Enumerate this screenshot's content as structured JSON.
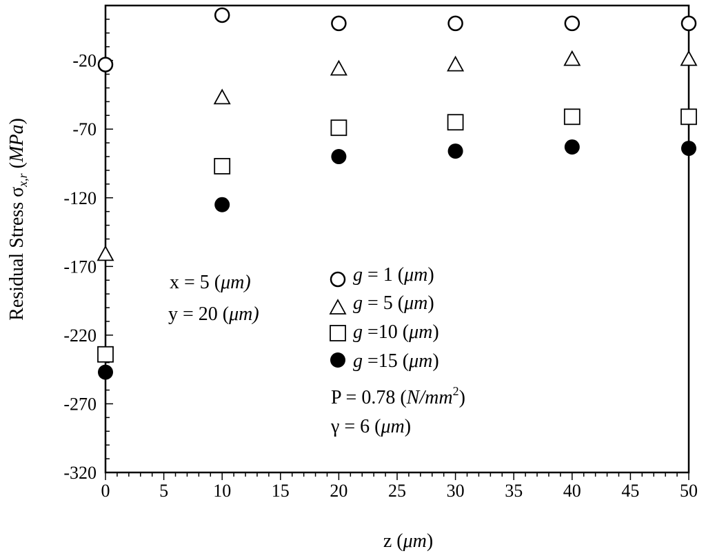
{
  "chart_data": {
    "type": "scatter",
    "title": "",
    "xlabel": {
      "prefix": "z (",
      "unit": "μm",
      "suffix": ")"
    },
    "ylabel": {
      "prefix": "Residual Stress σ",
      "sub": "x,r",
      "space": " (",
      "unit": "MPa",
      "suffix": ")"
    },
    "xlim": [
      0,
      50
    ],
    "ylim": [
      -320,
      20
    ],
    "x_ticks": [
      "0",
      "5",
      "10",
      "15",
      "20",
      "25",
      "30",
      "35",
      "40",
      "45",
      "50"
    ],
    "y_ticks": [
      "-20",
      "-70",
      "-120",
      "-170",
      "-220",
      "-270",
      "-320"
    ],
    "x_tick_values": [
      0,
      5,
      10,
      15,
      20,
      25,
      30,
      35,
      40,
      45,
      50
    ],
    "y_tick_values": [
      -20,
      -70,
      -120,
      -170,
      -220,
      -270,
      -320
    ],
    "grid": false,
    "legend_position": "center",
    "x": [
      0,
      10,
      20,
      30,
      40,
      50
    ],
    "series": [
      {
        "name": "g = 1 (μm)",
        "marker": "open-circle",
        "values": [
          -23,
          13,
          7,
          7,
          7,
          7
        ]
      },
      {
        "name": "g = 5 (μm)",
        "marker": "open-triangle",
        "values": [
          -161,
          -47,
          -26,
          -23,
          -19,
          -19
        ]
      },
      {
        "name": "g =10 (μm)",
        "marker": "open-square",
        "values": [
          -234,
          -97,
          -69,
          -65,
          -61,
          -61
        ]
      },
      {
        "name": "g =15 (μm)",
        "marker": "filled-circle",
        "values": [
          -247,
          -125,
          -90,
          -86,
          -83,
          -84
        ]
      }
    ],
    "legend": [
      {
        "sym": "g",
        "rest": " = 1 (",
        "unit": "μm",
        "close": ")"
      },
      {
        "sym": "g",
        "rest": " = 5 (",
        "unit": "μm",
        "close": ")"
      },
      {
        "sym": "g",
        "rest": " =10 (",
        "unit": "μm",
        "close": ")"
      },
      {
        "sym": "g",
        "rest": " =15 (",
        "unit": "μm",
        "close": ")"
      }
    ],
    "annotations": {
      "x_param": {
        "prefix": "x = 5 (",
        "unit": "μm)"
      },
      "y_param": {
        "prefix": "y = 20 (",
        "unit": "μm)"
      },
      "pressure": {
        "prefix": "P = 0.78 (",
        "unit": "N/mm",
        "sup": "2",
        "suffix": ")"
      },
      "gamma": {
        "prefix": "γ = 6 (",
        "unit": "μm",
        "suffix": ")"
      }
    }
  }
}
